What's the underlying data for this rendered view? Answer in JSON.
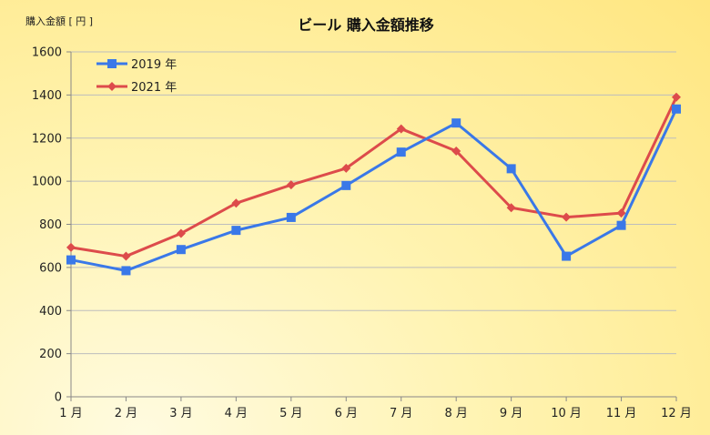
{
  "chart_data": {
    "type": "line",
    "title": "ビール 購入金額推移",
    "ylabel": "購入金額 [ 円 ]",
    "xlabel": "",
    "categories": [
      "1 月",
      "2 月",
      "3 月",
      "4 月",
      "5 月",
      "6 月",
      "7 月",
      "8 月",
      "9 月",
      "10 月",
      "11 月",
      "12 月"
    ],
    "ylim": [
      0,
      1600
    ],
    "yticks": [
      0,
      200,
      400,
      600,
      800,
      1000,
      1200,
      1400,
      1600
    ],
    "ytick_labels": [
      "0",
      "200",
      "400",
      "600",
      "800",
      "1000",
      "1200",
      "1400",
      "1600"
    ],
    "grid": true,
    "legend_position": "top-left",
    "series": [
      {
        "name": "2019 年",
        "color": "#3a78e8",
        "marker": "square",
        "values": [
          635,
          585,
          683,
          772,
          832,
          980,
          1135,
          1270,
          1058,
          652,
          795,
          1335
        ]
      },
      {
        "name": "2021 年",
        "color": "#dd4b4b",
        "marker": "diamond",
        "values": [
          693,
          652,
          758,
          898,
          983,
          1060,
          1243,
          1140,
          877,
          833,
          852,
          1390
        ]
      }
    ]
  }
}
